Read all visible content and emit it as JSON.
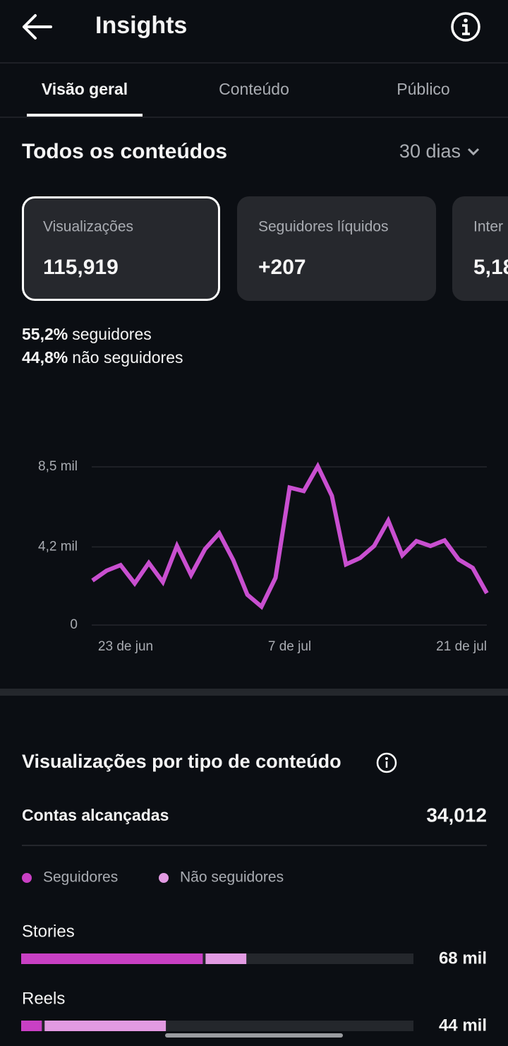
{
  "header": {
    "title": "Insights"
  },
  "tabs": [
    "Visão geral",
    "Conteúdo",
    "Público"
  ],
  "section": {
    "title": "Todos os conteúdos",
    "period": "30 dias"
  },
  "cards": [
    {
      "label": "Visualizações",
      "value": "115,919"
    },
    {
      "label": "Seguidores líquidos",
      "value": "+207"
    },
    {
      "label": "Inter",
      "value": "5,18"
    }
  ],
  "split": [
    {
      "value": "55,2%",
      "label": "seguidores"
    },
    {
      "value": "44,8%",
      "label": "não seguidores"
    }
  ],
  "chart": {
    "type": "line",
    "color": "#c94fd0",
    "categories": [
      null,
      null,
      "23 de jun",
      null,
      null,
      null,
      null,
      null,
      null,
      null,
      null,
      null,
      null,
      null,
      "7 de jul",
      null,
      null,
      null,
      null,
      null,
      null,
      null,
      null,
      null,
      null,
      null,
      "21 de jul",
      null,
      null
    ],
    "values": [
      2390,
      2920,
      3220,
      2240,
      3340,
      2310,
      4250,
      2690,
      4090,
      4930,
      3490,
      1630,
      990,
      2540,
      7390,
      7200,
      8530,
      6940,
      3260,
      3600,
      4250,
      5610,
      3750,
      4510,
      4250,
      4550,
      3520,
      3070,
      1710
    ],
    "ylim": [
      0,
      8500
    ],
    "yticks": [
      0,
      {
        "value": 4200,
        "label": "4,2 mil"
      },
      {
        "value": 8500,
        "label": "8,5 mil"
      }
    ],
    "grid": true
  },
  "breakdown": {
    "title": "Visualizações por tipo de conteúdo",
    "reach_label": "Contas alcançadas",
    "reach_value": "34,012",
    "legend": [
      {
        "name": "Seguidores",
        "color": "#c940c4"
      },
      {
        "name": "Não seguidores",
        "color": "#e29ae2"
      }
    ],
    "xlim": [
      0,
      117
    ],
    "rows": [
      {
        "name": "Stories",
        "values": [
          55,
          13
        ],
        "value_label": "68 mil"
      },
      {
        "name": "Reels",
        "values": [
          7,
          37
        ],
        "value_label": "44 mil"
      }
    ]
  }
}
